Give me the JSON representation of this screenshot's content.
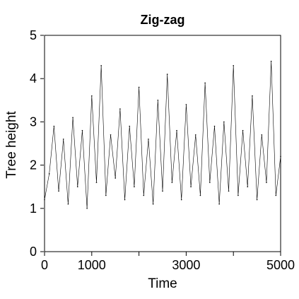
{
  "chart_data": {
    "type": "line",
    "title": "Zig-zag",
    "xlabel": "Time",
    "ylabel": "Tree height",
    "xlim": [
      0,
      5000
    ],
    "ylim": [
      0,
      5
    ],
    "x_ticks": [
      0,
      1000,
      2000,
      3000,
      4000,
      5000
    ],
    "x_tick_labels": [
      "0",
      "1000",
      "",
      "3000",
      "",
      "5000"
    ],
    "y_ticks": [
      0,
      1,
      2,
      3,
      4,
      5
    ],
    "y_tick_labels": [
      "0",
      "1",
      "2",
      "3",
      "4",
      "5"
    ],
    "grid": false,
    "legend": "none",
    "series": [
      {
        "color": "#000000",
        "x": [
          0,
          100,
          200,
          300,
          400,
          500,
          600,
          700,
          800,
          900,
          1000,
          1100,
          1200,
          1300,
          1400,
          1500,
          1600,
          1700,
          1800,
          1900,
          2000,
          2100,
          2200,
          2300,
          2400,
          2500,
          2600,
          2700,
          2800,
          2900,
          3000,
          3100,
          3200,
          3300,
          3400,
          3500,
          3600,
          3700,
          3800,
          3900,
          4000,
          4100,
          4200,
          4300,
          4400,
          4500,
          4600,
          4700,
          4800,
          4900,
          5000
        ],
        "y": [
          1.2,
          1.8,
          2.9,
          1.4,
          2.6,
          1.1,
          3.1,
          1.5,
          2.8,
          1.0,
          3.6,
          1.6,
          4.3,
          1.3,
          2.7,
          1.7,
          3.3,
          1.2,
          2.9,
          1.5,
          3.8,
          1.3,
          2.6,
          1.1,
          3.5,
          1.4,
          4.1,
          1.6,
          2.8,
          1.2,
          3.4,
          1.5,
          2.7,
          1.3,
          3.9,
          1.6,
          2.9,
          1.1,
          3.0,
          1.4,
          4.3,
          1.3,
          2.8,
          1.5,
          3.6,
          1.2,
          2.7,
          1.6,
          4.4,
          1.3,
          2.2
        ]
      }
    ]
  }
}
